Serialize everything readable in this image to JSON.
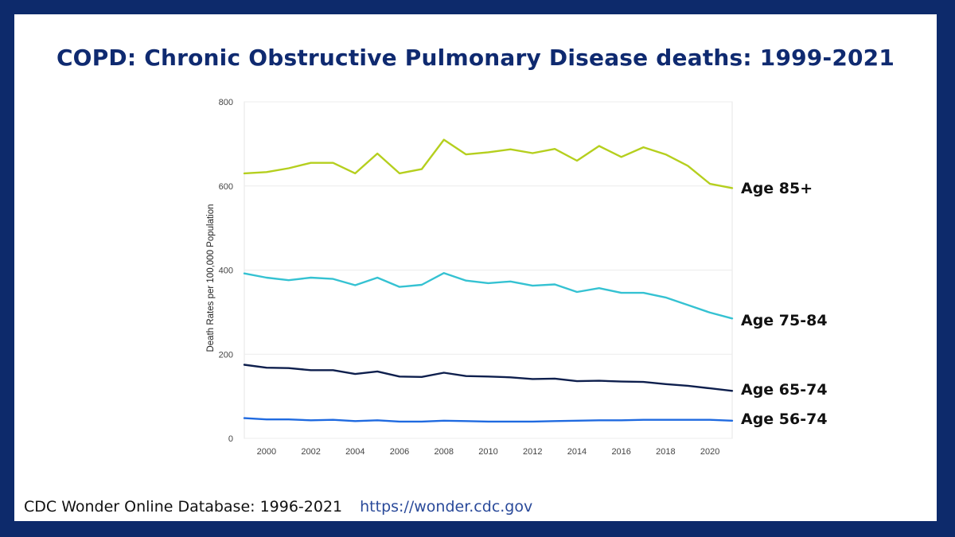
{
  "title": "COPD:  Chronic Obstructive Pulmonary Disease deaths:  1999-2021",
  "source": {
    "label": "CDC Wonder Online Database:  1996-2021",
    "url": "https://wonder.cdc.gov"
  },
  "colors": {
    "background": "#0d2a6b",
    "title": "#0f2a70",
    "url": "#2a4a9a"
  },
  "chart_data": {
    "type": "line",
    "ylabel": "Death Rates per 100,000 Population",
    "xlabel": "",
    "ylim": [
      0,
      800
    ],
    "xlim": [
      1999,
      2021
    ],
    "yticks": [
      0,
      200,
      400,
      600,
      800
    ],
    "xticks": [
      2000,
      2002,
      2004,
      2006,
      2008,
      2010,
      2012,
      2014,
      2016,
      2018,
      2020
    ],
    "grid": "horizontal",
    "legend": "right-end labels",
    "x": [
      1999,
      2000,
      2001,
      2002,
      2003,
      2004,
      2005,
      2006,
      2007,
      2008,
      2009,
      2010,
      2011,
      2012,
      2013,
      2014,
      2015,
      2016,
      2017,
      2018,
      2019,
      2020,
      2021
    ],
    "series": [
      {
        "name": "Age 85+",
        "color": "#b5cf1e",
        "values": [
          630,
          633,
          642,
          655,
          655,
          630,
          677,
          630,
          640,
          710,
          675,
          680,
          687,
          678,
          688,
          660,
          695,
          669,
          692,
          675,
          648,
          605,
          595
        ]
      },
      {
        "name": "Age 75-84",
        "color": "#35c2d2",
        "values": [
          392,
          382,
          376,
          382,
          379,
          364,
          382,
          360,
          365,
          393,
          375,
          369,
          373,
          363,
          366,
          348,
          357,
          346,
          346,
          335,
          317,
          299,
          285
        ]
      },
      {
        "name": "Age 65-74",
        "color": "#0e1f4d",
        "values": [
          175,
          168,
          167,
          162,
          162,
          153,
          159,
          147,
          146,
          156,
          148,
          147,
          145,
          141,
          142,
          136,
          137,
          135,
          134,
          129,
          125,
          119,
          113
        ]
      },
      {
        "name": "Age 56-74",
        "color": "#1f6ae0",
        "values": [
          48,
          45,
          45,
          43,
          44,
          41,
          43,
          40,
          40,
          42,
          41,
          40,
          40,
          40,
          41,
          42,
          43,
          43,
          44,
          44,
          44,
          44,
          42
        ]
      }
    ]
  }
}
